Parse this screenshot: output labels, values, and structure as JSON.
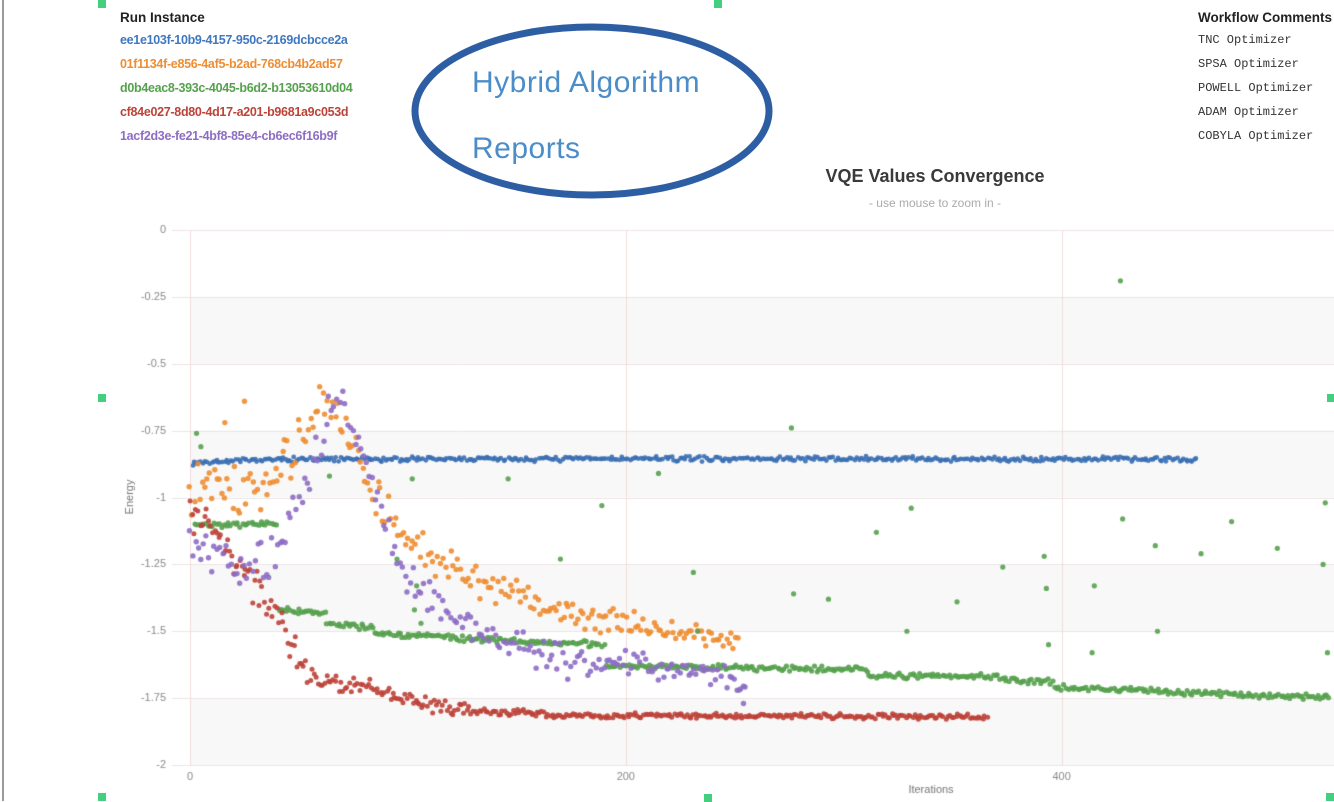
{
  "page": {
    "run_instance": {
      "title": "Run Instance",
      "items": [
        {
          "id": "ee1e103f-10b9-4157-950c-2169dcbcce2a",
          "color": "#3f77c0"
        },
        {
          "id": "01f1134f-e856-4af5-b2ad-768cb4b2ad57",
          "color": "#ee8d31"
        },
        {
          "id": "d0b4eac8-393c-4045-b6d2-b13053610d04",
          "color": "#56a14e"
        },
        {
          "id": "cf84e027-8d80-4d17-a201-b9681a9c053d",
          "color": "#bd4238"
        },
        {
          "id": "1acf2d3e-fe21-4bf8-85e4-cb6ec6f16b9f",
          "color": "#8d6dc4"
        }
      ]
    },
    "workflow_comments": {
      "title": "Workflow Comments",
      "items": [
        "TNC Optimizer",
        "SPSA Optimizer",
        "POWELL Optimizer",
        "ADAM Optimizer",
        "COBYLA Optimizer"
      ]
    },
    "annotation": {
      "line1": "Hybrid Algorithm",
      "line2": "Reports",
      "ellipse_color": "#2d5ea3",
      "text_color": "#4a8dc8",
      "handle_color": "#43cf7e"
    }
  },
  "chart_data": {
    "type": "scatter",
    "title": "VQE Values Convergence",
    "subtitle": "- use mouse to zoom in -",
    "xlabel": "Iterations",
    "ylabel": "Energy",
    "xlim": [
      0,
      525
    ],
    "ylim": [
      -2,
      0
    ],
    "x_ticks": [
      0,
      200,
      400
    ],
    "y_ticks": [
      0,
      -0.25,
      -0.5,
      -0.75,
      -1,
      -1.25,
      -1.5,
      -1.75,
      -2
    ],
    "grid": true,
    "legend_position": "none",
    "series": [
      {
        "name": "TNC Optimizer",
        "run_id": "ee1e103f-10b9-4157-950c-2169dcbcce2a",
        "color": "#3a6fb4",
        "marker_r": 2.4,
        "x_start": 1,
        "x_end": 462,
        "step": 1,
        "seed": 7,
        "trend": [
          [
            1,
            -0.87
          ],
          [
            40,
            -0.858
          ],
          [
            200,
            -0.855
          ],
          [
            462,
            -0.857
          ]
        ],
        "noise": [
          [
            1,
            0.011
          ],
          [
            462,
            0.011
          ]
        ],
        "outliers": []
      },
      {
        "name": "SPSA Optimizer",
        "run_id": "01f1134f-e856-4af5-b2ad-768cb4b2ad57",
        "color": "#ee8d31",
        "marker_r": 2.7,
        "x_start": 0,
        "x_end": 252,
        "step": 1.15,
        "seed": 13,
        "trend": [
          [
            0,
            -0.95
          ],
          [
            12,
            -0.92
          ],
          [
            25,
            -1.0
          ],
          [
            38,
            -0.92
          ],
          [
            50,
            -0.8
          ],
          [
            60,
            -0.65
          ],
          [
            68,
            -0.7
          ],
          [
            78,
            -0.85
          ],
          [
            85,
            -1.0
          ],
          [
            95,
            -1.12
          ],
          [
            110,
            -1.22
          ],
          [
            125,
            -1.28
          ],
          [
            140,
            -1.33
          ],
          [
            155,
            -1.38
          ],
          [
            170,
            -1.42
          ],
          [
            185,
            -1.45
          ],
          [
            200,
            -1.47
          ],
          [
            215,
            -1.49
          ],
          [
            230,
            -1.51
          ],
          [
            245,
            -1.54
          ],
          [
            252,
            -1.56
          ]
        ],
        "noise": [
          [
            0,
            0.13
          ],
          [
            50,
            0.1
          ],
          [
            80,
            0.09
          ],
          [
            120,
            0.08
          ],
          [
            200,
            0.06
          ],
          [
            252,
            0.05
          ]
        ],
        "outliers": [
          [
            16,
            -0.72
          ],
          [
            25,
            -0.64
          ]
        ]
      },
      {
        "name": "POWELL Optimizer",
        "run_id": "d0b4eac8-393c-4045-b6d2-b13053610d04",
        "color": "#56a14e",
        "marker_r": 2.6,
        "x_start": 2,
        "x_end": 523,
        "step": 1.05,
        "seed": 42,
        "trend": [
          [
            2,
            -1.1
          ],
          [
            40,
            -1.1
          ],
          [
            40.6,
            -1.42
          ],
          [
            62,
            -1.43
          ],
          [
            62.5,
            -1.475
          ],
          [
            84,
            -1.485
          ],
          [
            84.5,
            -1.505
          ],
          [
            100,
            -1.515
          ],
          [
            122,
            -1.525
          ],
          [
            150,
            -1.535
          ],
          [
            168,
            -1.545
          ],
          [
            190,
            -1.55
          ],
          [
            191,
            -1.63
          ],
          [
            240,
            -1.635
          ],
          [
            310,
            -1.645
          ],
          [
            312,
            -1.665
          ],
          [
            372,
            -1.67
          ],
          [
            374,
            -1.685
          ],
          [
            396,
            -1.69
          ],
          [
            398,
            -1.71
          ],
          [
            420,
            -1.715
          ],
          [
            450,
            -1.725
          ],
          [
            490,
            -1.74
          ],
          [
            523,
            -1.745
          ]
        ],
        "noise": [
          [
            2,
            0.013
          ],
          [
            523,
            0.013
          ]
        ],
        "outliers": [
          [
            3,
            -0.76
          ],
          [
            5,
            -0.81
          ],
          [
            64,
            -0.92
          ],
          [
            95,
            -1.23
          ],
          [
            102,
            -0.93
          ],
          [
            103,
            -1.42
          ],
          [
            104,
            -1.33
          ],
          [
            106,
            -1.47
          ],
          [
            146,
            -0.93
          ],
          [
            170,
            -1.23
          ],
          [
            189,
            -1.03
          ],
          [
            215,
            -0.91
          ],
          [
            231,
            -1.28
          ],
          [
            233,
            -1.5
          ],
          [
            276,
            -0.74
          ],
          [
            277,
            -1.36
          ],
          [
            293,
            -1.38
          ],
          [
            315,
            -1.13
          ],
          [
            329,
            -1.5
          ],
          [
            331,
            -1.04
          ],
          [
            352,
            -1.39
          ],
          [
            373,
            -1.26
          ],
          [
            392,
            -1.22
          ],
          [
            393,
            -1.34
          ],
          [
            394,
            -1.55
          ],
          [
            414,
            -1.58
          ],
          [
            415,
            -1.33
          ],
          [
            427,
            -0.19
          ],
          [
            428,
            -1.08
          ],
          [
            443,
            -1.18
          ],
          [
            444,
            -1.5
          ],
          [
            464,
            -1.21
          ],
          [
            478,
            -1.09
          ],
          [
            499,
            -1.19
          ],
          [
            520,
            -1.25
          ],
          [
            521,
            -1.02
          ],
          [
            522,
            -1.58
          ]
        ]
      },
      {
        "name": "ADAM Optimizer",
        "run_id": "cf84e027-8d80-4d17-a201-b9681a9c053d",
        "color": "#bd4238",
        "marker_r": 2.5,
        "x_start": 0,
        "x_end": 366,
        "step": 0.95,
        "seed": 99,
        "trend": [
          [
            0,
            -1.02
          ],
          [
            8,
            -1.1
          ],
          [
            18,
            -1.2
          ],
          [
            28,
            -1.3
          ],
          [
            36,
            -1.4
          ],
          [
            46,
            -1.55
          ],
          [
            56,
            -1.67
          ],
          [
            68,
            -1.71
          ],
          [
            78,
            -1.69
          ],
          [
            90,
            -1.74
          ],
          [
            105,
            -1.77
          ],
          [
            120,
            -1.79
          ],
          [
            143,
            -1.8
          ],
          [
            170,
            -1.815
          ],
          [
            366,
            -1.82
          ]
        ],
        "noise": [
          [
            0,
            0.11
          ],
          [
            30,
            0.1
          ],
          [
            50,
            0.07
          ],
          [
            80,
            0.05
          ],
          [
            110,
            0.035
          ],
          [
            140,
            0.02
          ],
          [
            170,
            0.012
          ],
          [
            366,
            0.012
          ]
        ],
        "outliers": []
      },
      {
        "name": "COBYLA Optimizer",
        "run_id": "1acf2d3e-fe21-4bf8-85e4-cb6ec6f16b9f",
        "color": "#8d6dc4",
        "marker_r": 2.7,
        "x_start": 0,
        "x_end": 256,
        "step": 1.25,
        "seed": 5,
        "trend": [
          [
            0,
            -1.18
          ],
          [
            15,
            -1.22
          ],
          [
            28,
            -1.28
          ],
          [
            40,
            -1.18
          ],
          [
            52,
            -0.95
          ],
          [
            62,
            -0.72
          ],
          [
            70,
            -0.62
          ],
          [
            80,
            -0.85
          ],
          [
            90,
            -1.1
          ],
          [
            100,
            -1.32
          ],
          [
            112,
            -1.4
          ],
          [
            125,
            -1.45
          ],
          [
            140,
            -1.52
          ],
          [
            160,
            -1.58
          ],
          [
            180,
            -1.62
          ],
          [
            210,
            -1.63
          ],
          [
            235,
            -1.64
          ],
          [
            250,
            -1.68
          ],
          [
            256,
            -1.72
          ]
        ],
        "noise": [
          [
            0,
            0.12
          ],
          [
            45,
            0.11
          ],
          [
            70,
            0.1
          ],
          [
            100,
            0.09
          ],
          [
            150,
            0.08
          ],
          [
            256,
            0.06
          ]
        ],
        "outliers": [
          [
            252,
            -1.72
          ],
          [
            254,
            -1.77
          ]
        ]
      }
    ]
  }
}
